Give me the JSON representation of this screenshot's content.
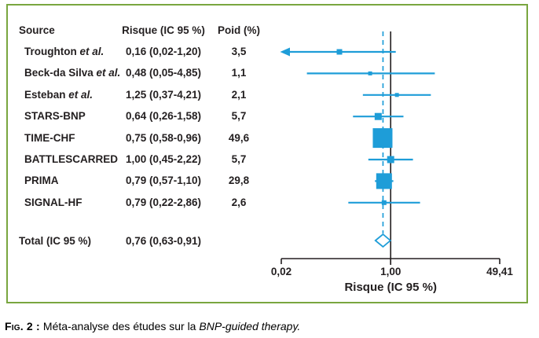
{
  "caption": {
    "label": "Fig. 2 : ",
    "text": "Méta-analyse des études sur la ",
    "italic": "BNP-guided therapy."
  },
  "colors": {
    "accent": "#1e9dd8",
    "frame": "#79a63f",
    "ink": "#231f20"
  },
  "chart_data": {
    "type": "forest",
    "x_scale": "log",
    "xlabel": "Risque (IC 95 %)",
    "x_ticks": [
      {
        "label": "0,02",
        "value": 0.02
      },
      {
        "label": "1,00",
        "value": 1.0
      },
      {
        "label": "49,41",
        "value": 49.41
      }
    ],
    "ref_line_value": 1.0,
    "columns": {
      "source": "Source",
      "risk": "Risque (IC 95 %)",
      "weight": "Poid (%)"
    },
    "studies": [
      {
        "name": "Troughton",
        "name_italic": "et al.",
        "risk_label": "0,16 (0,02-1,20)",
        "weight_label": "3,5",
        "est": 0.16,
        "lo": 0.02,
        "hi": 1.2,
        "weight": 3.5,
        "arrow_left": true
      },
      {
        "name": "Beck-da Silva",
        "name_italic": "et al.",
        "risk_label": "0,48 (0,05-4,85)",
        "weight_label": "1,1",
        "est": 0.48,
        "lo": 0.05,
        "hi": 4.85,
        "weight": 1.1,
        "arrow_left": false
      },
      {
        "name": "Esteban",
        "name_italic": "et al.",
        "risk_label": "1,25 (0,37-4,21)",
        "weight_label": "2,1",
        "est": 1.25,
        "lo": 0.37,
        "hi": 4.21,
        "weight": 2.1,
        "arrow_left": false
      },
      {
        "name": "STARS-BNP",
        "name_italic": "",
        "risk_label": "0,64 (0,26-1,58)",
        "weight_label": "5,7",
        "est": 0.64,
        "lo": 0.26,
        "hi": 1.58,
        "weight": 5.7,
        "arrow_left": false
      },
      {
        "name": "TIME-CHF",
        "name_italic": "",
        "risk_label": "0,75 (0,58-0,96)",
        "weight_label": "49,6",
        "est": 0.75,
        "lo": 0.58,
        "hi": 0.96,
        "weight": 49.6,
        "arrow_left": false
      },
      {
        "name": "BATTLESCARRED",
        "name_italic": "",
        "risk_label": "1,00 (0,45-2,22)",
        "weight_label": "5,7",
        "est": 1.0,
        "lo": 0.45,
        "hi": 2.22,
        "weight": 5.7,
        "arrow_left": false
      },
      {
        "name": "PRIMA",
        "name_italic": "",
        "risk_label": "0,79 (0,57-1,10)",
        "weight_label": "29,8",
        "est": 0.79,
        "lo": 0.57,
        "hi": 1.1,
        "weight": 29.8,
        "arrow_left": false
      },
      {
        "name": "SIGNAL-HF",
        "name_italic": "",
        "risk_label": "0,79 (0,22-2,86)",
        "weight_label": "2,6",
        "est": 0.79,
        "lo": 0.22,
        "hi": 2.86,
        "weight": 2.6,
        "arrow_left": false
      }
    ],
    "total": {
      "label": "Total (IC 95 %)",
      "risk_label": "0,76 (0,63-0,91)",
      "est": 0.76,
      "lo": 0.63,
      "hi": 0.91
    }
  }
}
